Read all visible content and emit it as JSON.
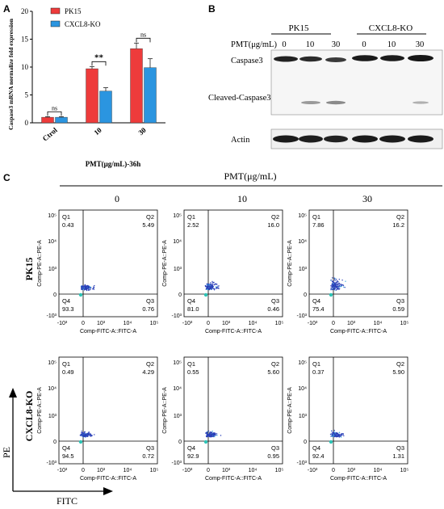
{
  "panels": {
    "a": "A",
    "b": "B",
    "c": "C"
  },
  "colors": {
    "pk15": "#ee3b3b",
    "cxcl8": "#2b95e0"
  },
  "chart_data": {
    "type": "bar",
    "ylabel": "Caspase3 mRNA normalize fold expression",
    "xlabel": "PMT(μg/mL)-36h",
    "categories": [
      "Ctrol",
      "10",
      "30"
    ],
    "yticks": [
      "0",
      "5",
      "10",
      "15",
      "20"
    ],
    "ylim": [
      0,
      20
    ],
    "series": [
      {
        "name": "PK15",
        "values": [
          1.0,
          9.7,
          13.3
        ],
        "errors": [
          0.1,
          0.4,
          1.0
        ]
      },
      {
        "name": "CXCL8-KO",
        "values": [
          1.0,
          5.7,
          9.9
        ],
        "errors": [
          0.1,
          0.6,
          1.6
        ]
      }
    ],
    "significance": [
      "ns",
      "**",
      "ns"
    ]
  },
  "blot": {
    "groups": [
      "PK15",
      "CXCL8-KO"
    ],
    "dose_label": "PMT(μg/mL)",
    "doses": [
      "0",
      "10",
      "30",
      "0",
      "10",
      "30"
    ],
    "rows": [
      "Caspase3",
      "Cleaved-Caspase3",
      "Actin"
    ]
  },
  "flow": {
    "title": "PMT(μg/mL)",
    "columns": [
      "0",
      "10",
      "30"
    ],
    "rows": [
      "PK15",
      "CXCL8-KO"
    ],
    "xaxis": "Comp-FITC-A::FITC-A",
    "yaxis": "Comp-PE-A::PE-A",
    "quad_labels": [
      "Q1",
      "Q2",
      "Q3",
      "Q4"
    ],
    "xticks": [
      "-10³",
      "0",
      "10³",
      "10⁴",
      "10⁵"
    ],
    "yticks": [
      "10⁵",
      "10⁴",
      "10³",
      "0",
      "-10³"
    ],
    "plots": [
      [
        {
          "q1": "0.43",
          "q2": "5.49",
          "q3": "0.76",
          "q4": "93.3"
        },
        {
          "q1": "2.52",
          "q2": "16.0",
          "q3": "0.46",
          "q4": "81.0"
        },
        {
          "q1": "7.86",
          "q2": "16.2",
          "q3": "0.59",
          "q4": "75.4"
        }
      ],
      [
        {
          "q1": "0.49",
          "q2": "4.29",
          "q3": "0.72",
          "q4": "94.5"
        },
        {
          "q1": "0.55",
          "q2": "5.60",
          "q3": "0.95",
          "q4": "92.9"
        },
        {
          "q1": "0.37",
          "q2": "5.90",
          "q3": "1.31",
          "q4": "92.4"
        }
      ]
    ],
    "axis_pe": "PE",
    "axis_fitc": "FITC"
  }
}
